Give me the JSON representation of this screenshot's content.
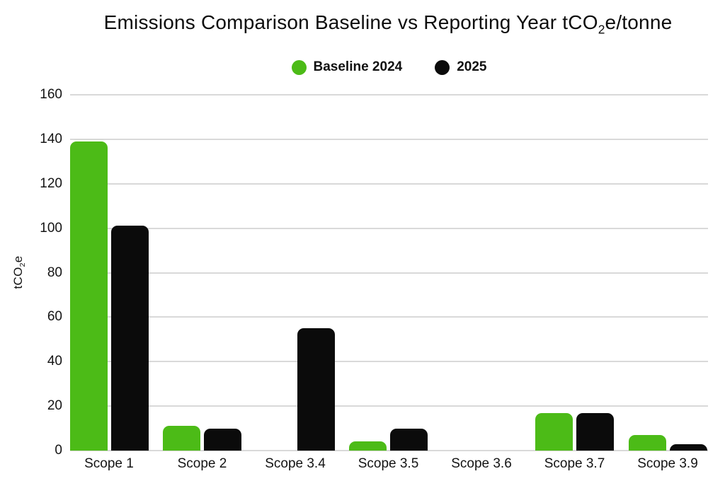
{
  "header": {
    "title_pre": "Emissions Comparison Baseline vs Reporting Year tCO",
    "title_sub": "2",
    "title_post": "e/tonne"
  },
  "y_axis": {
    "label_pre": "tCO",
    "label_sub": "2",
    "label_post": "e"
  },
  "chart_data": {
    "type": "bar",
    "title": "Emissions Comparison Baseline vs Reporting Year tCO2e/tonne",
    "categories": [
      "Scope 1",
      "Scope 2",
      "Scope 3.4",
      "Scope 3.5",
      "Scope 3.6",
      "Scope 3.7",
      "Scope 3.9"
    ],
    "series": [
      {
        "name": "Baseline 2024",
        "color": "#4cbb17",
        "values": [
          139,
          11,
          0,
          4,
          0,
          17,
          7
        ]
      },
      {
        "name": "2025",
        "color": "#0b0b0b",
        "values": [
          101,
          10,
          55,
          10,
          0,
          17,
          3
        ]
      }
    ],
    "xlabel": "",
    "ylabel": "tCO2e",
    "ylim": [
      0,
      160
    ],
    "ytick_step": 20,
    "yticks": [
      0,
      20,
      40,
      60,
      80,
      100,
      120,
      140,
      160
    ],
    "grid": true,
    "legend_position": "top",
    "background": "#ffffff"
  }
}
